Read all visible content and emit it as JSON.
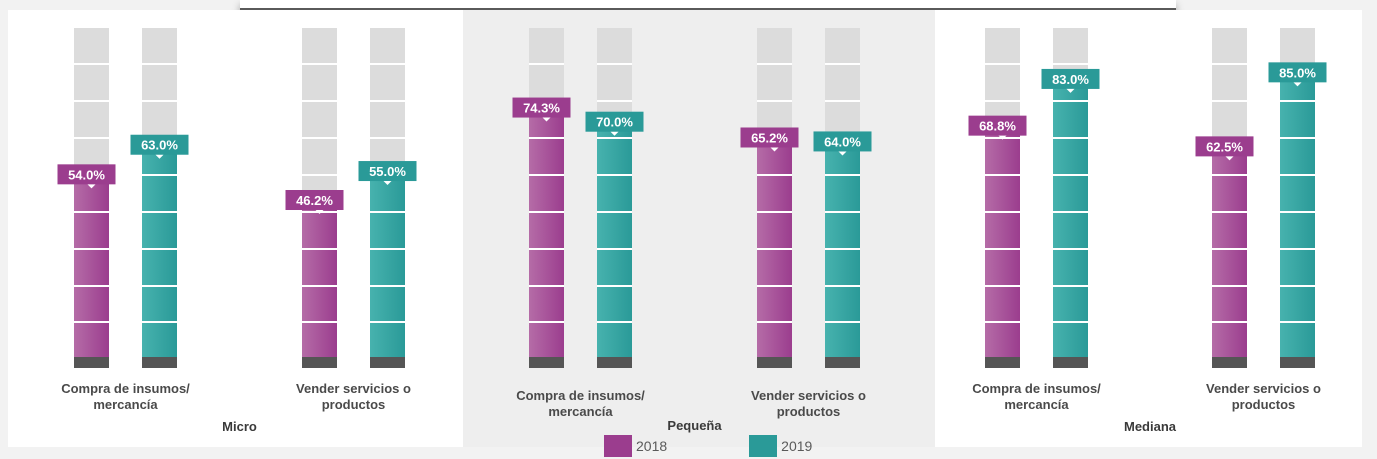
{
  "chart_data": {
    "type": "bar",
    "groups": [
      {
        "name": "Micro",
        "categories": [
          "Compra de insumos/ mercancía",
          "Vender servicios o productos"
        ],
        "series": [
          {
            "name": "2018",
            "values": [
              54.0,
              46.2
            ]
          },
          {
            "name": "2019",
            "values": [
              63.0,
              55.0
            ]
          }
        ]
      },
      {
        "name": "Pequeña",
        "categories": [
          "Compra de insumos/ mercancía",
          "Vender servicios o productos"
        ],
        "series": [
          {
            "name": "2018",
            "values": [
              74.3,
              65.2
            ]
          },
          {
            "name": "2019",
            "values": [
              70.0,
              64.0
            ]
          }
        ]
      },
      {
        "name": "Mediana",
        "categories": [
          "Compra de insumos/ mercancía",
          "Vender servicios o productos"
        ],
        "series": [
          {
            "name": "2018",
            "values": [
              68.8,
              62.5
            ]
          },
          {
            "name": "2019",
            "values": [
              83.0,
              85.0
            ]
          }
        ]
      }
    ],
    "value_format": "0.0%",
    "ylim": [
      0,
      100
    ],
    "legend_position": "bottom",
    "colors": {
      "2018": "#9b3d8e",
      "2019": "#2a9a98",
      "track": "#dcdcdc",
      "base": "#555555"
    }
  },
  "legend": {
    "items": [
      {
        "label": "2018",
        "color": "#9b3d8e"
      },
      {
        "label": "2019",
        "color": "#2a9a98"
      }
    ]
  }
}
